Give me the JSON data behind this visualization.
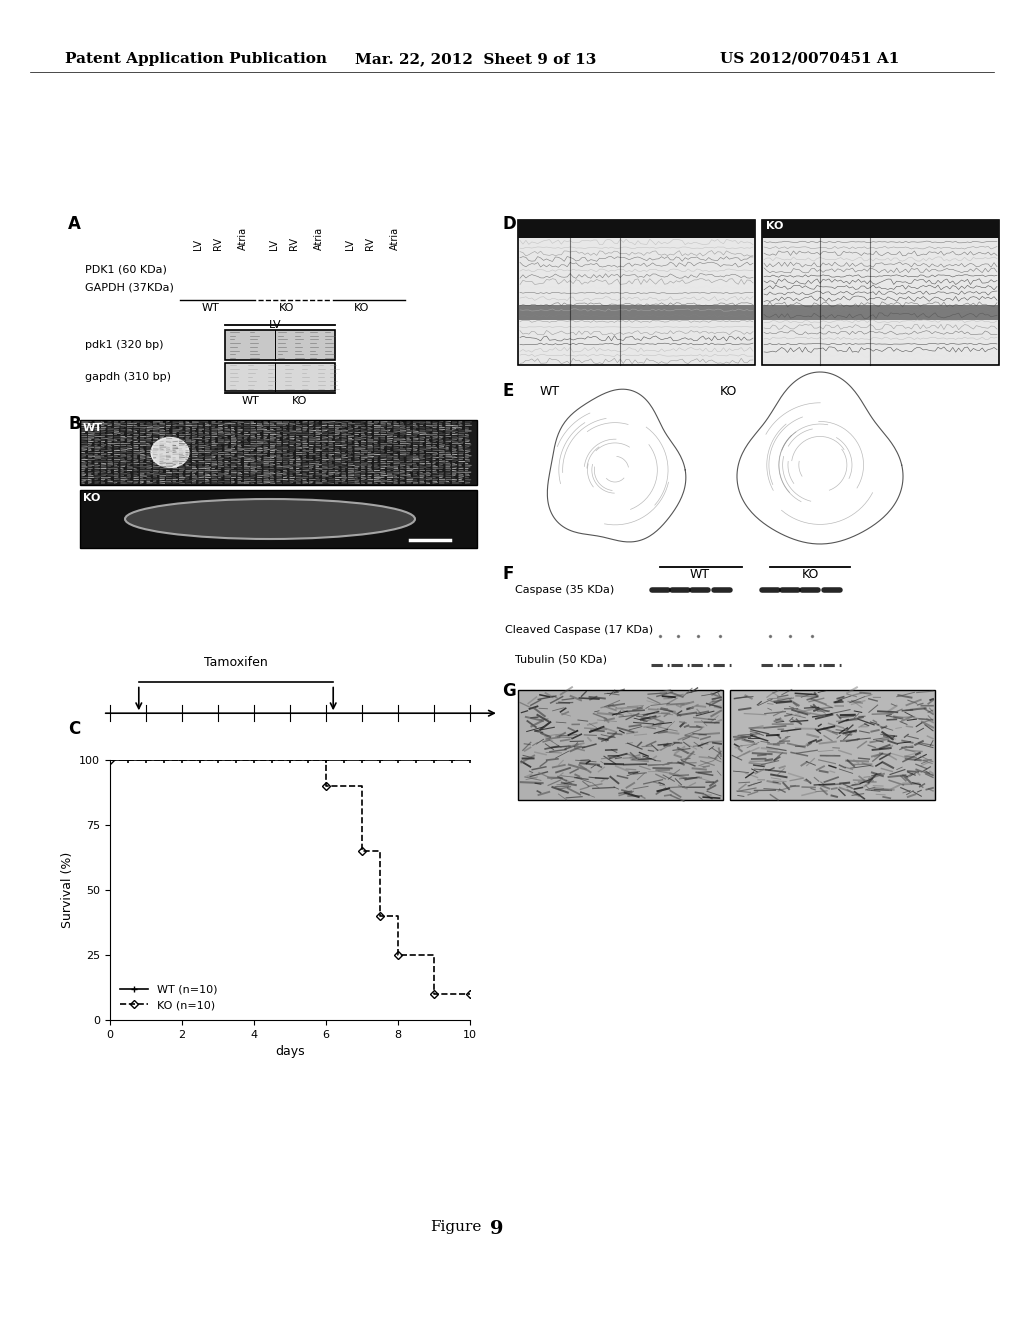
{
  "header_left": "Patent Application Publication",
  "header_center": "Mar. 22, 2012  Sheet 9 of 13",
  "header_right": "US 2012/0070451 A1",
  "figure_label": "Figure 9",
  "panel_A_label": "A",
  "panel_A_col_labels": [
    "LV",
    "RV",
    "Atria",
    "LV",
    "RV",
    "Atria",
    "LV",
    "RV",
    "Atria"
  ],
  "panel_A_row1": "PDK1 (60 KDa)",
  "panel_A_row2": "GAPDH (37KDa)",
  "panel_A_group_labels": [
    "WT",
    "KO",
    "KO"
  ],
  "panel_A2_label": "LV",
  "panel_A2_row1": "pdk1 (320 bp)",
  "panel_A2_row2": "gapdh (310 bp)",
  "panel_A2_groups": [
    "WT",
    "KO"
  ],
  "panel_B_label": "B",
  "panel_B_sub1": "WT",
  "panel_B_sub2": "KO",
  "panel_C_label": "C",
  "panel_C_title": "Tamoxifen",
  "panel_C_xlabel": "days",
  "panel_C_ylabel": "Survival (%)",
  "panel_C_WT_x": [
    0,
    0.5,
    1.0,
    1.5,
    2.0,
    2.5,
    3.0,
    3.5,
    4.0,
    4.5,
    5.0,
    5.5,
    6.0,
    6.5,
    7.0,
    7.5,
    8.0,
    8.5,
    9.0,
    9.5,
    10.0
  ],
  "panel_C_WT_y": [
    100,
    100,
    100,
    100,
    100,
    100,
    100,
    100,
    100,
    100,
    100,
    100,
    100,
    100,
    100,
    100,
    100,
    100,
    100,
    100,
    100
  ],
  "panel_C_KO_x": [
    0,
    6,
    6,
    7,
    7,
    7.5,
    7.5,
    8,
    8,
    9,
    9,
    10
  ],
  "panel_C_KO_y": [
    100,
    100,
    90,
    90,
    65,
    65,
    40,
    40,
    25,
    25,
    10,
    10
  ],
  "panel_C_legend_WT": "WT (n=10)",
  "panel_C_legend_KO": "KO (n=10)",
  "panel_C_xticks": [
    0,
    2,
    4,
    6,
    8,
    10
  ],
  "panel_C_yticks": [
    0,
    25,
    50,
    75,
    100
  ],
  "panel_D_label": "D",
  "panel_D_sublabel": "KO",
  "panel_E_label": "E",
  "panel_E_sub1": "WT",
  "panel_E_sub2": "KO",
  "panel_F_label": "F",
  "panel_F_sub_WT": "WT",
  "panel_F_sub_KO": "KO",
  "panel_F_row1": "Caspase (35 KDa)",
  "panel_F_row2": "Cleaved Caspase (17 KDa)",
  "panel_F_row3": "Tubulin (50 KDa)",
  "panel_G_label": "G",
  "bg_color": "#ffffff",
  "text_color": "#000000"
}
